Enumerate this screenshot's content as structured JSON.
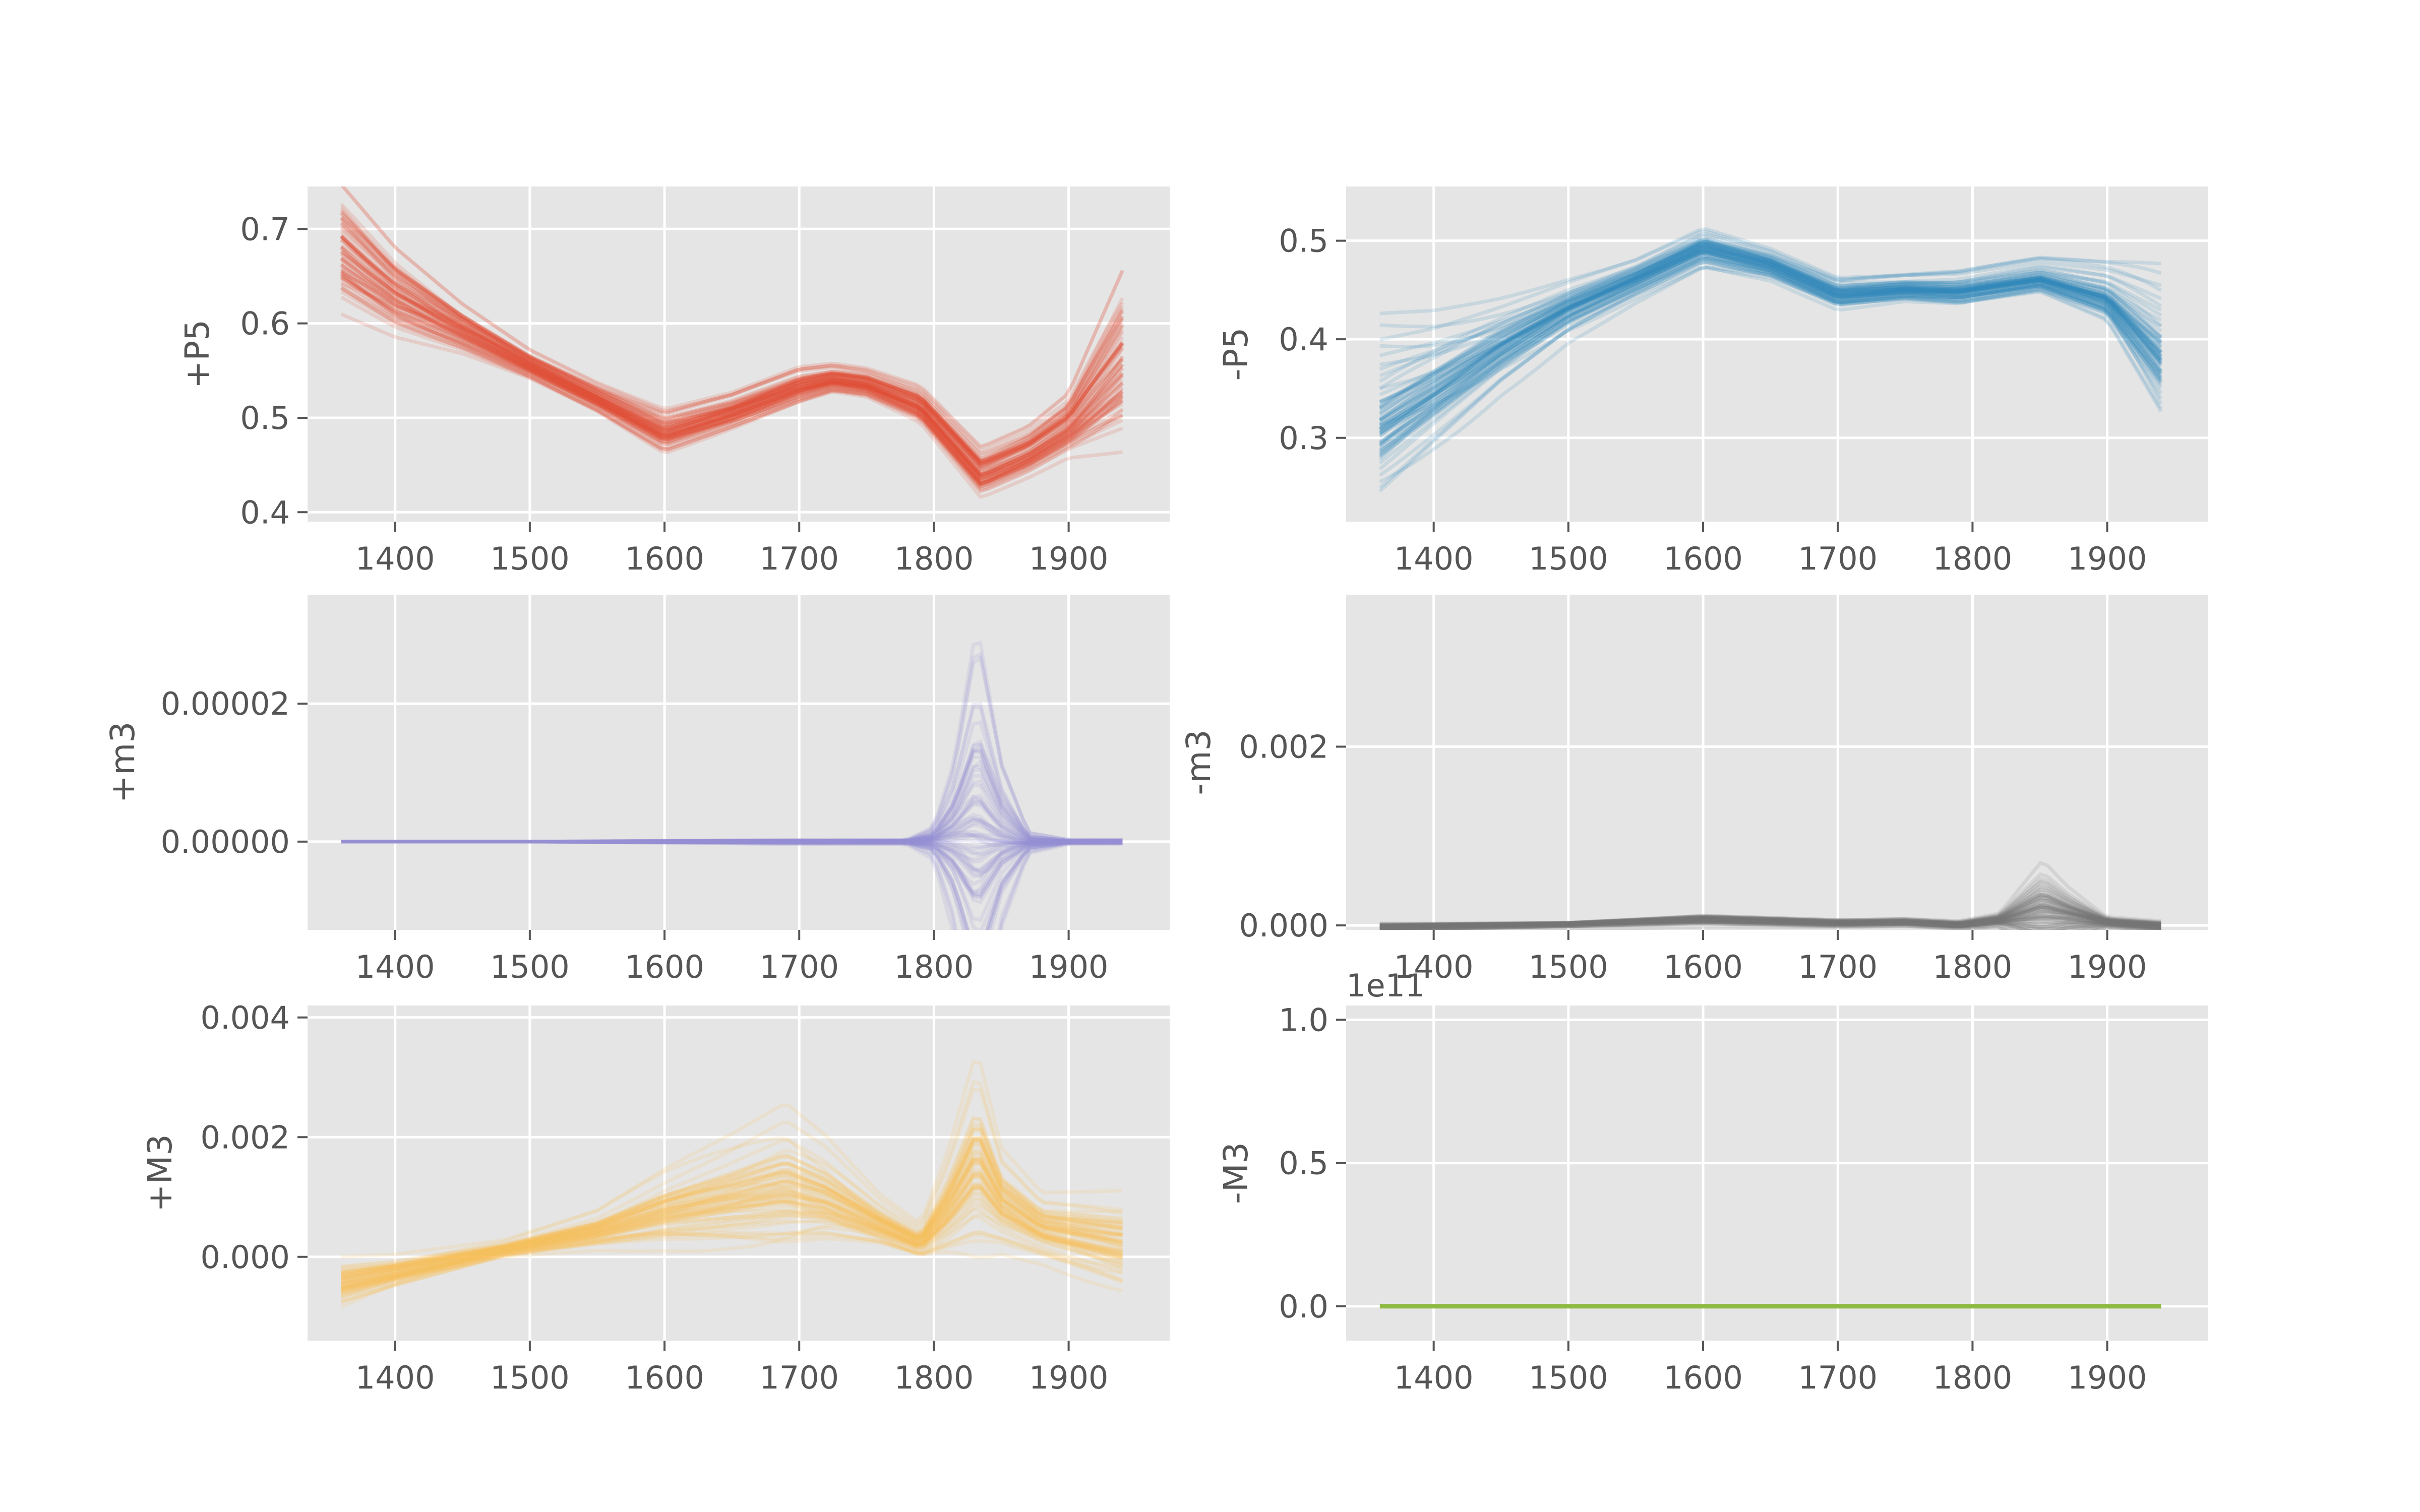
{
  "chart_data": [
    {
      "type": "line",
      "panel": "top-left",
      "ylabel": "+P5",
      "color": "#E24A33",
      "xlim": [
        1335,
        1975
      ],
      "ylim": [
        0.39,
        0.745
      ],
      "xticks": [
        1400,
        1500,
        1600,
        1700,
        1800,
        1900
      ],
      "xtick_labels": [
        "1400",
        "1500",
        "1600",
        "1700",
        "1800",
        "1900"
      ],
      "yticks": [
        0.4,
        0.5,
        0.6,
        0.7
      ],
      "ytick_labels": [
        "0.4",
        "0.5",
        "0.6",
        "0.7"
      ],
      "grid": true,
      "x": [
        1360,
        1400,
        1450,
        1500,
        1550,
        1600,
        1650,
        1700,
        1725,
        1750,
        1790,
        1835,
        1870,
        1900,
        1940
      ],
      "center": [
        0.675,
        0.63,
        0.592,
        0.555,
        0.52,
        0.483,
        0.505,
        0.532,
        0.54,
        0.535,
        0.512,
        0.44,
        0.462,
        0.49,
        0.555
      ],
      "spread": [
        0.05,
        0.035,
        0.02,
        0.012,
        0.012,
        0.018,
        0.015,
        0.015,
        0.012,
        0.012,
        0.015,
        0.02,
        0.02,
        0.025,
        0.07
      ],
      "n_traces": 70
    },
    {
      "type": "line",
      "panel": "top-right",
      "ylabel": "-P5",
      "color": "#348ABD",
      "xlim": [
        1335,
        1975
      ],
      "ylim": [
        0.215,
        0.555
      ],
      "xticks": [
        1400,
        1500,
        1600,
        1700,
        1800,
        1900
      ],
      "xtick_labels": [
        "1400",
        "1500",
        "1600",
        "1700",
        "1800",
        "1900"
      ],
      "yticks": [
        0.3,
        0.4,
        0.5
      ],
      "ytick_labels": [
        "0.3",
        "0.4",
        "0.5"
      ],
      "grid": true,
      "x": [
        1360,
        1400,
        1450,
        1500,
        1550,
        1600,
        1650,
        1700,
        1750,
        1790,
        1850,
        1900,
        1940
      ],
      "center": [
        0.31,
        0.345,
        0.39,
        0.43,
        0.46,
        0.492,
        0.475,
        0.445,
        0.45,
        0.448,
        0.46,
        0.44,
        0.38
      ],
      "spread": [
        0.06,
        0.045,
        0.03,
        0.02,
        0.015,
        0.015,
        0.012,
        0.012,
        0.01,
        0.012,
        0.012,
        0.02,
        0.05
      ],
      "n_traces": 70
    },
    {
      "type": "line",
      "panel": "middle-left",
      "ylabel": "+m3",
      "color": "#988ED5",
      "xlim": [
        1335,
        1975
      ],
      "ylim": [
        -1.28e-05,
        3.58e-05
      ],
      "xticks": [
        1400,
        1500,
        1600,
        1700,
        1800,
        1900
      ],
      "xtick_labels": [
        "1400",
        "1500",
        "1600",
        "1700",
        "1800",
        "1900"
      ],
      "yticks": [
        0.0,
        2e-05
      ],
      "ytick_labels": [
        "0.00000",
        "0.00002"
      ],
      "grid": true,
      "x": [
        1360,
        1500,
        1700,
        1780,
        1800,
        1815,
        1832,
        1850,
        1870,
        1900,
        1940
      ],
      "center": [
        0,
        0,
        0,
        0,
        2e-07,
        1e-06,
        2.5e-06,
        1e-06,
        0,
        0,
        0
      ],
      "spread": [
        0,
        0,
        2e-07,
        2e-07,
        1.5e-06,
        8e-06,
        2.2e-05,
        8e-06,
        1e-06,
        2e-07,
        2e-07
      ],
      "n_traces": 70
    },
    {
      "type": "line",
      "panel": "middle-right",
      "ylabel": "-m3",
      "color": "#777777",
      "xlim": [
        1335,
        1975
      ],
      "ylim": [
        -5e-05,
        0.0037
      ],
      "xticks": [
        1400,
        1500,
        1600,
        1700,
        1800,
        1900
      ],
      "xtick_labels": [
        "1400",
        "1500",
        "1600",
        "1700",
        "1800",
        "1900"
      ],
      "yticks": [
        0.0,
        0.002
      ],
      "ytick_labels": [
        "0.000",
        "0.002"
      ],
      "grid": true,
      "x": [
        1360,
        1500,
        1600,
        1700,
        1750,
        1790,
        1820,
        1852,
        1870,
        1900,
        1940
      ],
      "center": [
        -2e-05,
        1e-05,
        6e-05,
        2e-05,
        3e-05,
        0.0,
        5e-05,
        0.00012,
        0.0001,
        3e-05,
        -1e-05
      ],
      "spread": [
        3e-05,
        2e-05,
        4e-05,
        3e-05,
        3e-05,
        3e-05,
        5e-05,
        0.00035,
        0.0002,
        4e-05,
        4e-05
      ],
      "n_traces": 70
    },
    {
      "type": "line",
      "panel": "bottom-left",
      "ylabel": "+M3",
      "color": "#FBC15E",
      "xlim": [
        1335,
        1975
      ],
      "ylim": [
        -0.0014,
        0.0042
      ],
      "xticks": [
        1400,
        1500,
        1600,
        1700,
        1800,
        1900
      ],
      "xtick_labels": [
        "1400",
        "1500",
        "1600",
        "1700",
        "1800",
        "1900"
      ],
      "yticks": [
        0.0,
        0.002,
        0.004
      ],
      "ytick_labels": [
        "0.000",
        "0.002",
        "0.004"
      ],
      "grid": true,
      "x": [
        1360,
        1400,
        1480,
        1550,
        1600,
        1650,
        1690,
        1720,
        1760,
        1790,
        1810,
        1832,
        1850,
        1880,
        1940
      ],
      "center": [
        -0.0005,
        -0.0003,
        0.0001,
        0.0004,
        0.0007,
        0.0009,
        0.00105,
        0.0009,
        0.0005,
        0.0002,
        0.0007,
        0.0014,
        0.0008,
        0.0004,
        0.0001
      ],
      "spread": [
        0.0003,
        0.0002,
        0.0001,
        0.0002,
        0.0004,
        0.0006,
        0.0008,
        0.0006,
        0.0003,
        0.0002,
        0.0006,
        0.0012,
        0.0006,
        0.0004,
        0.0006
      ],
      "n_traces": 70
    },
    {
      "type": "line",
      "panel": "bottom-right",
      "ylabel": "-M3",
      "color": "#8EBA42",
      "offset_text": "1e11",
      "xlim": [
        1335,
        1975
      ],
      "ylim": [
        -0.12,
        1.05
      ],
      "xticks": [
        1400,
        1500,
        1600,
        1700,
        1800,
        1900
      ],
      "xtick_labels": [
        "1400",
        "1500",
        "1600",
        "1700",
        "1800",
        "1900"
      ],
      "yticks": [
        0.0,
        0.5,
        1.0
      ],
      "ytick_labels": [
        "0.0",
        "0.5",
        "1.0"
      ],
      "grid": true,
      "x": [
        1360,
        1940
      ],
      "center": [
        0,
        0
      ],
      "spread": [
        0,
        0
      ],
      "n_traces": 1
    }
  ]
}
